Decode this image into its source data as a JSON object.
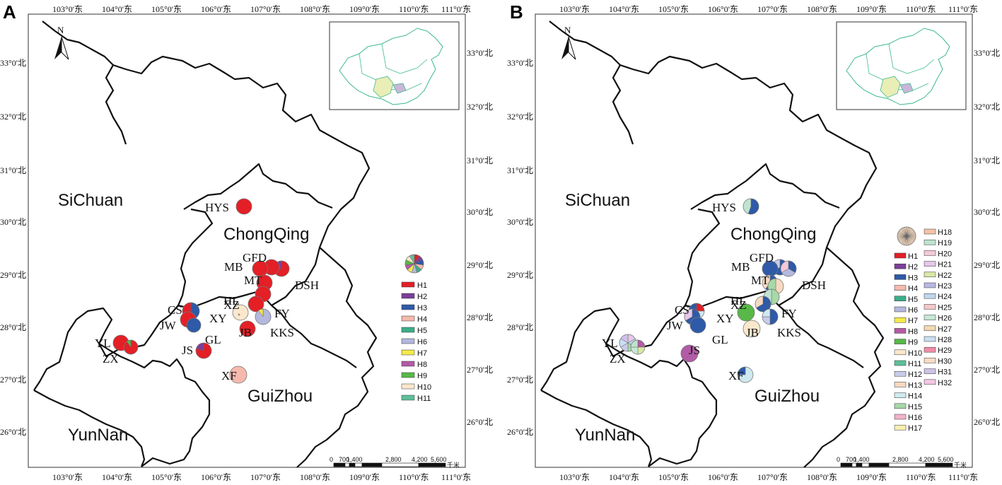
{
  "panels": [
    {
      "letter": "A",
      "legend": [
        "H1",
        "H2",
        "H3",
        "H4",
        "H5",
        "H6",
        "H7",
        "H8",
        "H9",
        "H10",
        "H11"
      ]
    },
    {
      "letter": "B",
      "legend": [
        "H1",
        "H2",
        "H3",
        "H4",
        "H5",
        "H6",
        "H7",
        "H8",
        "H9",
        "H10",
        "H11",
        "H12",
        "H13",
        "H14",
        "H15",
        "H16",
        "H17",
        "H18",
        "H19",
        "H20",
        "H21",
        "H22",
        "H23",
        "H24",
        "H25",
        "H26",
        "H27",
        "H28",
        "H29",
        "H30",
        "H31",
        "H32"
      ]
    }
  ],
  "lon_labels": [
    "103°0'东",
    "104°0'东",
    "105°0'东",
    "106°0'东",
    "107°0'东",
    "108°0'东",
    "109°0'东",
    "110°0'东",
    "111°0'东"
  ],
  "lat_labels": [
    "33°0'北",
    "32°0'北",
    "31°0'北",
    "30°0'北",
    "29°0'北",
    "28°0'北",
    "27°0'北",
    "26°0'北"
  ],
  "regions": [
    "SiChuan",
    "ChongQing",
    "GuiZhou",
    "YunNan"
  ],
  "sites": [
    "HYS",
    "GFD",
    "MB",
    "MT",
    "DSH",
    "XZ",
    "HL",
    "CS",
    "XY",
    "FY",
    "JW",
    "JB",
    "KKS",
    "YL",
    "ZX",
    "JS",
    "GL",
    "XF"
  ],
  "north_label": "N",
  "scale_labels": [
    "0",
    "700",
    "1,400",
    "2,800",
    "4,200",
    "5,600",
    "千米"
  ],
  "haplotype_colors": {
    "H1": "#e41f26",
    "H2": "#7b3f98",
    "H3": "#2e5aa8",
    "H4": "#f6b9ad",
    "H5": "#3cae8a",
    "H6": "#b4b8de",
    "H7": "#f4ea4a",
    "H8": "#b25ba6",
    "H9": "#58b848",
    "H10": "#fbe7cc",
    "H11": "#5fbf9a",
    "H12": "#c9cbea",
    "H13": "#f7d9c0",
    "H14": "#cfe9f0",
    "H15": "#a7d9a8",
    "H16": "#f2b3c9",
    "H17": "#f7efb0",
    "H18": "#f6c2a8",
    "H19": "#bfe3cf",
    "H20": "#f3c9d8",
    "H21": "#e6c7e8",
    "H22": "#d9e8a6",
    "H23": "#b8b8e2",
    "H24": "#bfd7ee",
    "H25": "#f5c8c8",
    "H26": "#c6e8d6",
    "H27": "#f3d9b0",
    "H28": "#c9def2",
    "H29": "#f08ca6",
    "H30": "#f9dcc4",
    "H31": "#cfc2e6",
    "H32": "#f4c6e4"
  }
}
